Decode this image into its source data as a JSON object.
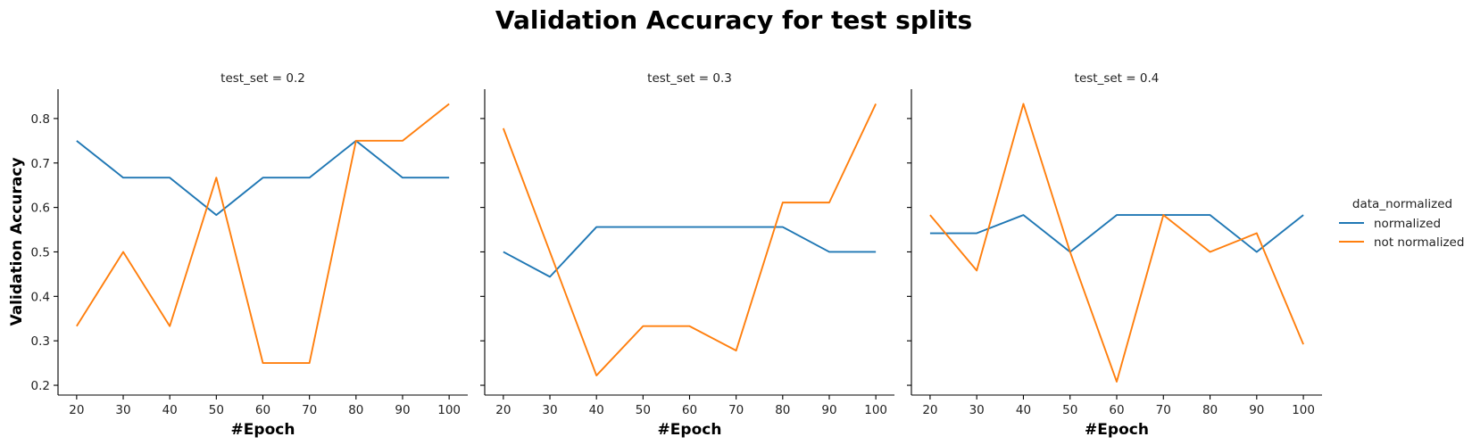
{
  "colors": {
    "normalized": "#1f77b4",
    "not_normalized": "#ff7f0e"
  },
  "chart_data": {
    "type": "line",
    "title": "Validation Accuracy for test splits",
    "xlabel": "#Epoch",
    "ylabel": "Validation Accuracy",
    "x": [
      20,
      30,
      40,
      50,
      60,
      70,
      80,
      90,
      100
    ],
    "xticks": [
      "20",
      "30",
      "40",
      "50",
      "60",
      "70",
      "80",
      "90",
      "100"
    ],
    "yticks": [
      "0.2",
      "0.3",
      "0.4",
      "0.5",
      "0.6",
      "0.7",
      "0.8"
    ],
    "ytick_values": [
      0.2,
      0.3,
      0.4,
      0.5,
      0.6,
      0.7,
      0.8
    ],
    "xlim": [
      16,
      104
    ],
    "ylim": [
      0.178,
      0.866
    ],
    "grid": false,
    "legend": {
      "title": "data_normalized",
      "placement": "right",
      "entries": [
        "normalized",
        "not normalized"
      ]
    },
    "facets": [
      {
        "title": "test_set = 0.2",
        "series": [
          {
            "name": "normalized",
            "values": [
              0.75,
              0.667,
              0.667,
              0.583,
              0.667,
              0.667,
              0.75,
              0.667,
              0.667
            ]
          },
          {
            "name": "not normalized",
            "values": [
              0.333,
              0.5,
              0.333,
              0.667,
              0.25,
              0.25,
              0.75,
              0.75,
              0.833
            ]
          }
        ]
      },
      {
        "title": "test_set = 0.3",
        "series": [
          {
            "name": "normalized",
            "values": [
              0.5,
              0.444,
              0.556,
              0.556,
              0.556,
              0.556,
              0.556,
              0.5,
              0.5
            ]
          },
          {
            "name": "not normalized",
            "values": [
              0.778,
              0.5,
              0.222,
              0.333,
              0.333,
              0.278,
              0.611,
              0.611,
              0.833
            ]
          }
        ]
      },
      {
        "title": "test_set = 0.4",
        "series": [
          {
            "name": "normalized",
            "values": [
              0.542,
              0.542,
              0.583,
              0.5,
              0.583,
              0.583,
              0.583,
              0.5,
              0.583
            ]
          },
          {
            "name": "not normalized",
            "values": [
              0.583,
              0.458,
              0.833,
              0.5,
              0.208,
              0.583,
              0.5,
              0.542,
              0.292
            ]
          }
        ]
      }
    ]
  }
}
